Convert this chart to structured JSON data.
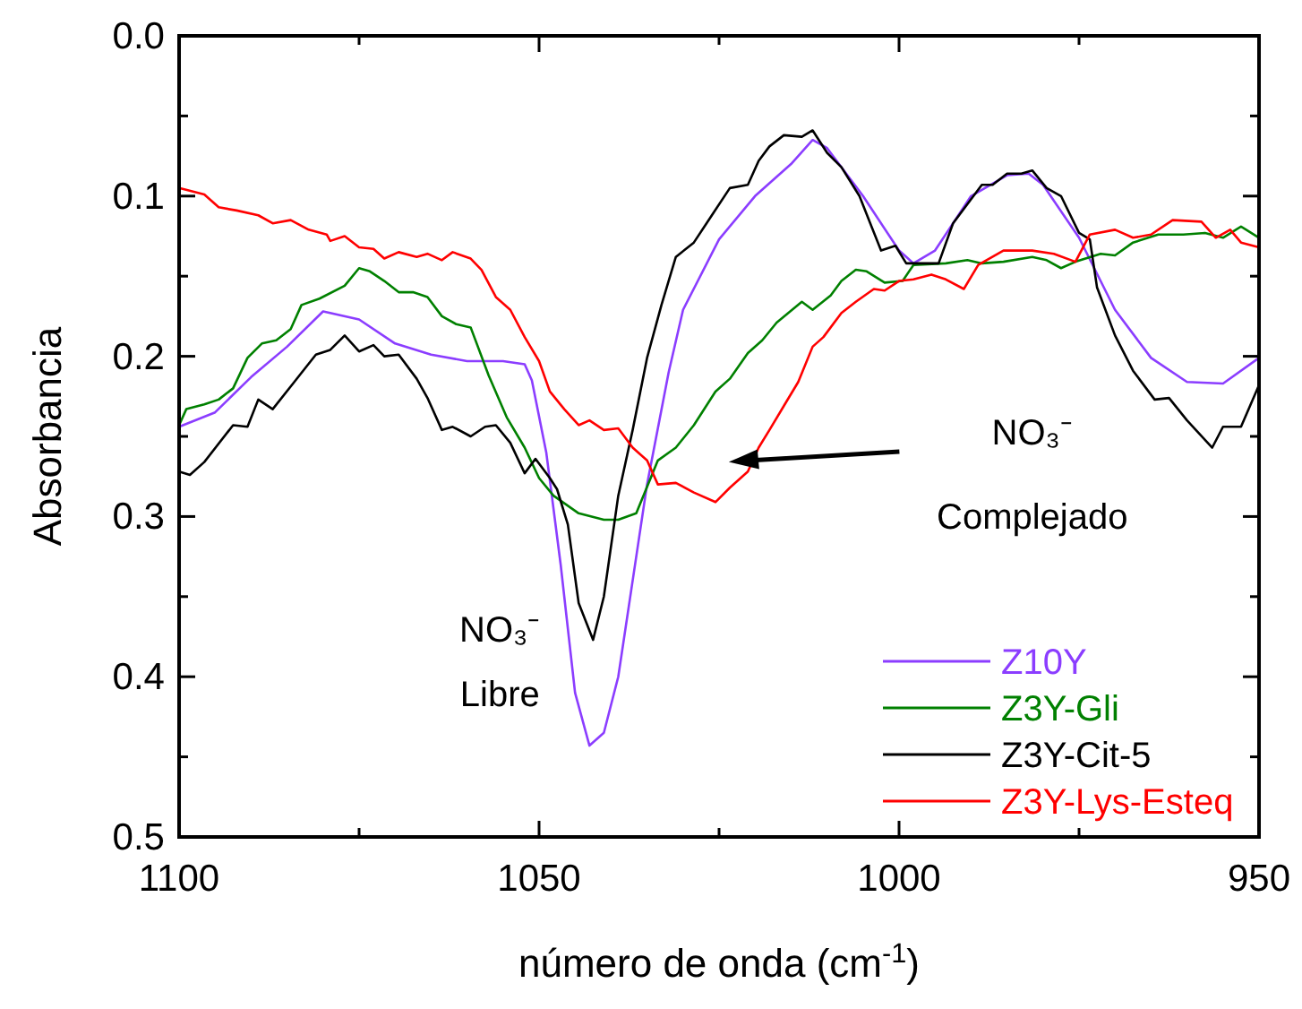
{
  "chart_data": {
    "type": "line",
    "xlabel": "número de onda (cm$^{-1}$)",
    "ylabel": "Absorbancia",
    "xlim": [
      1100,
      950
    ],
    "ylim": [
      0.5,
      0.0
    ],
    "xticks": [
      1100,
      {
        "value": 1075,
        "label": null
      },
      1050,
      {
        "value": 1025,
        "label": null
      },
      1000,
      {
        "value": 975,
        "label": null
      },
      950
    ],
    "yticks": [
      {
        "value": 0,
        "label": "0.0"
      },
      {
        "value": 0.05,
        "label": null
      },
      0.1,
      {
        "value": 0.15,
        "label": null
      },
      0.2,
      {
        "value": 0.25,
        "label": null
      },
      0.3,
      {
        "value": 0.35,
        "label": null
      },
      0.4,
      {
        "value": 0.45,
        "label": null
      },
      0.5
    ],
    "grid": false,
    "legend": "bottom right",
    "annotations": [
      {
        "text": "NO₃⁻",
        "x": 1043,
        "y": 0.443
      },
      "Libre",
      "NO₃⁻",
      "Complejado"
    ],
    "series": [
      {
        "name": "Z10Y",
        "color": "#8b3dff",
        "x": [
          1100,
          1095,
          1090,
          1085,
          1080,
          1075,
          1070,
          1065,
          1060,
          1055,
          1052,
          1051,
          1049,
          1047,
          1045,
          1043,
          1041,
          1039,
          1037,
          1035,
          1032,
          1030,
          1025,
          1020,
          1015,
          1012,
          1010,
          1005,
          1000,
          998,
          995,
          990,
          985,
          982,
          980,
          975,
          970,
          965,
          960,
          955,
          950
        ],
        "values": [
          0.244,
          0.235,
          0.213,
          0.194,
          0.172,
          0.177,
          0.192,
          0.199,
          0.203,
          0.203,
          0.205,
          0.215,
          0.26,
          0.33,
          0.41,
          0.443,
          0.435,
          0.4,
          0.34,
          0.28,
          0.21,
          0.171,
          0.127,
          0.1,
          0.08,
          0.065,
          0.07,
          0.1,
          0.134,
          0.142,
          0.134,
          0.1,
          0.087,
          0.086,
          0.093,
          0.126,
          0.171,
          0.201,
          0.216,
          0.217,
          0.201
        ]
      },
      {
        "name": "Z3Y-Gli",
        "color": "#008000",
        "x": [
          1100,
          1099,
          1096.5,
          1094.5,
          1092.5,
          1090.5,
          1088.5,
          1086.5,
          1084.5,
          1083,
          1080.5,
          1077,
          1075,
          1073.5,
          1071.5,
          1069.5,
          1067.5,
          1065.5,
          1063.5,
          1061.5,
          1059.5,
          1057,
          1054.5,
          1052,
          1050,
          1048,
          1044.5,
          1041,
          1039,
          1036.5,
          1034.5,
          1033.5,
          1031,
          1028.5,
          1025.5,
          1023.5,
          1021,
          1019,
          1017,
          1013.5,
          1012,
          1009.5,
          1008,
          1006,
          1004.5,
          1002,
          999.5,
          998,
          993.5,
          990.5,
          988.5,
          985.5,
          981.5,
          979.5,
          977.5,
          975.5,
          972,
          970,
          967.5,
          964,
          960.5,
          957.5,
          955,
          952.5,
          950
        ],
        "values": [
          0.243,
          0.233,
          0.23,
          0.227,
          0.22,
          0.201,
          0.192,
          0.19,
          0.183,
          0.168,
          0.164,
          0.156,
          0.145,
          0.147,
          0.153,
          0.16,
          0.16,
          0.163,
          0.175,
          0.18,
          0.182,
          0.212,
          0.238,
          0.257,
          0.276,
          0.287,
          0.298,
          0.302,
          0.302,
          0.298,
          0.276,
          0.265,
          0.257,
          0.243,
          0.222,
          0.214,
          0.198,
          0.19,
          0.179,
          0.166,
          0.171,
          0.162,
          0.153,
          0.146,
          0.147,
          0.154,
          0.153,
          0.143,
          0.142,
          0.14,
          0.142,
          0.141,
          0.138,
          0.14,
          0.145,
          0.141,
          0.136,
          0.137,
          0.129,
          0.124,
          0.124,
          0.123,
          0.126,
          0.119,
          0.126
        ]
      },
      {
        "name": "Z3Y-Cit-5",
        "color": "#000000",
        "x": [
          1100,
          1098.5,
          1096.5,
          1092.5,
          1090.5,
          1089,
          1087,
          1084,
          1081,
          1079,
          1077,
          1075,
          1073,
          1071.5,
          1069.5,
          1067,
          1065.5,
          1063.5,
          1062,
          1059.5,
          1057.5,
          1056,
          1054,
          1052,
          1050.5,
          1048.5,
          1047.5,
          1046,
          1044.5,
          1042.5,
          1041,
          1039,
          1037,
          1035,
          1033,
          1031,
          1028.5,
          1026,
          1023.5,
          1021,
          1019.5,
          1018,
          1016,
          1013.5,
          1012,
          1010,
          1008,
          1005.5,
          1002.5,
          1000.5,
          999,
          994.5,
          992.5,
          988.5,
          987,
          985,
          983,
          981.5,
          979.5,
          977.5,
          975,
          973.5,
          972.5,
          970,
          967.5,
          964.5,
          962.5,
          960,
          956.5,
          955,
          952.5,
          950
        ],
        "values": [
          0.272,
          0.274,
          0.266,
          0.243,
          0.244,
          0.227,
          0.233,
          0.216,
          0.199,
          0.196,
          0.187,
          0.197,
          0.193,
          0.2,
          0.199,
          0.214,
          0.226,
          0.246,
          0.244,
          0.25,
          0.244,
          0.243,
          0.254,
          0.273,
          0.264,
          0.276,
          0.283,
          0.305,
          0.354,
          0.377,
          0.35,
          0.287,
          0.246,
          0.201,
          0.168,
          0.138,
          0.129,
          0.112,
          0.095,
          0.093,
          0.078,
          0.069,
          0.062,
          0.063,
          0.059,
          0.073,
          0.082,
          0.1,
          0.134,
          0.131,
          0.142,
          0.142,
          0.117,
          0.093,
          0.093,
          0.086,
          0.086,
          0.084,
          0.095,
          0.1,
          0.123,
          0.127,
          0.157,
          0.187,
          0.209,
          0.227,
          0.226,
          0.24,
          0.257,
          0.244,
          0.244,
          0.218
        ]
      },
      {
        "name": "Z3Y-Lys-Esteq",
        "color": "#ff0000",
        "x": [
          1100,
          1096.5,
          1094.5,
          1092,
          1089,
          1087,
          1084.5,
          1082,
          1079.5,
          1079,
          1077,
          1075,
          1073,
          1071.5,
          1069.5,
          1067,
          1065.5,
          1063.5,
          1062,
          1059.5,
          1058,
          1056,
          1054,
          1052,
          1050,
          1048.5,
          1046.5,
          1044.5,
          1043,
          1041,
          1039,
          1037,
          1035,
          1033.5,
          1031,
          1028.5,
          1025.5,
          1023.5,
          1021,
          1019.5,
          1018,
          1016,
          1014,
          1012,
          1010.5,
          1008,
          1006,
          1003.5,
          1002,
          1000,
          998,
          995.5,
          993.5,
          991,
          989,
          985.5,
          981.5,
          978.5,
          975.5,
          973.5,
          970,
          967.5,
          965,
          962,
          958,
          956,
          954,
          952.5,
          950
        ],
        "values": [
          0.095,
          0.099,
          0.107,
          0.109,
          0.112,
          0.117,
          0.115,
          0.121,
          0.124,
          0.128,
          0.125,
          0.132,
          0.133,
          0.139,
          0.135,
          0.138,
          0.136,
          0.14,
          0.135,
          0.139,
          0.146,
          0.163,
          0.171,
          0.188,
          0.203,
          0.222,
          0.233,
          0.243,
          0.24,
          0.246,
          0.245,
          0.257,
          0.265,
          0.28,
          0.279,
          0.285,
          0.291,
          0.282,
          0.272,
          0.257,
          0.246,
          0.231,
          0.216,
          0.194,
          0.188,
          0.173,
          0.166,
          0.158,
          0.159,
          0.153,
          0.152,
          0.149,
          0.152,
          0.158,
          0.143,
          0.134,
          0.134,
          0.136,
          0.141,
          0.124,
          0.121,
          0.126,
          0.124,
          0.115,
          0.116,
          0.126,
          0.121,
          0.129,
          0.132
        ]
      }
    ]
  }
}
